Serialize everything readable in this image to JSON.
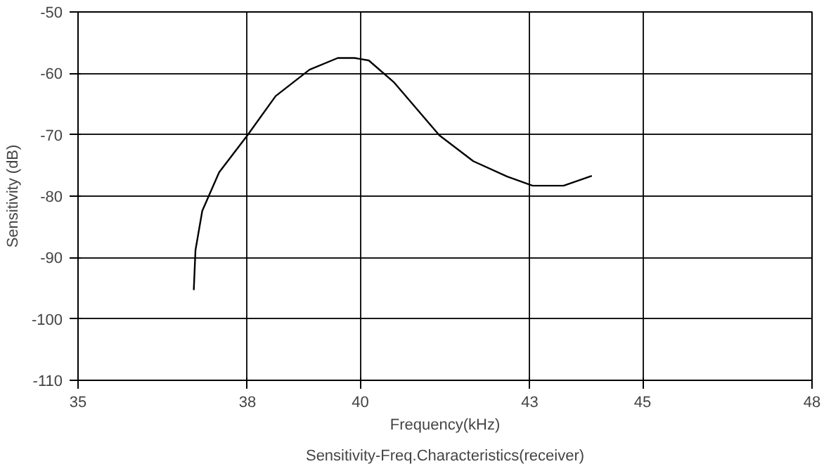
{
  "chart_data": {
    "type": "line",
    "title": "Sensitivity-Freq.Characteristics(receiver)",
    "xlabel": "Frequency(kHz)",
    "ylabel": "Sensitivity (dB)",
    "x": [
      37.05,
      37.08,
      37.2,
      37.5,
      38.0,
      38.5,
      39.1,
      39.6,
      39.9,
      40.15,
      40.6,
      41.4,
      42.0,
      42.6,
      43.05,
      43.6,
      44.1
    ],
    "series": [
      {
        "color": "#000000",
        "values": [
          -95.3,
          -88.8,
          -82.4,
          -76.1,
          -70.1,
          -63.7,
          -59.4,
          -57.5,
          -57.5,
          -57.9,
          -61.5,
          -70.1,
          -74.3,
          -76.8,
          -78.3,
          -78.3,
          -76.7
        ]
      }
    ],
    "xlim": [
      35,
      48
    ],
    "xticks": [
      35,
      38,
      40,
      43,
      45,
      48
    ],
    "ylim": [
      -110,
      -50
    ],
    "yticks": [
      -110,
      -100,
      -90,
      -80,
      -70,
      -60,
      -50
    ],
    "grid": true,
    "marker": "none",
    "line_style": "solid"
  }
}
